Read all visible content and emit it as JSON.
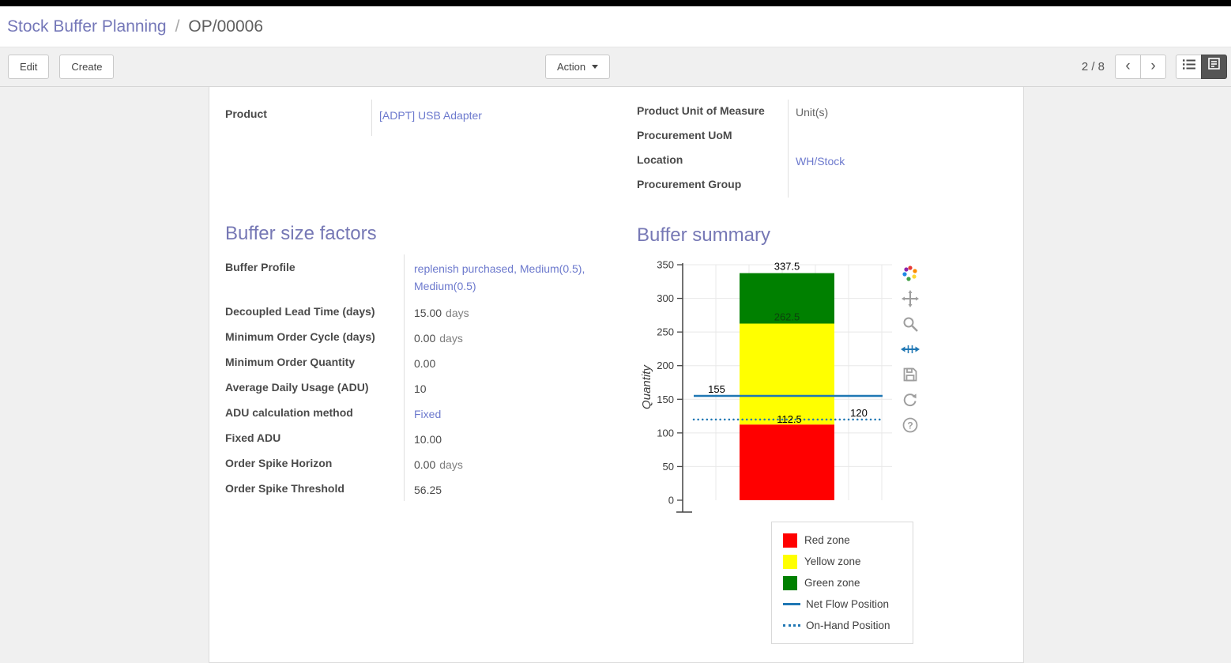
{
  "breadcrumb": {
    "parent": "Stock Buffer Planning",
    "separator": "/",
    "current": "OP/00006"
  },
  "toolbar": {
    "edit_label": "Edit",
    "create_label": "Create",
    "action_label": "Action",
    "pager": "2 / 8"
  },
  "form": {
    "left_fields": [
      {
        "label": "Product",
        "value": "[ADPT] USB Adapter"
      }
    ],
    "right_fields": [
      {
        "label": "Product Unit of Measure",
        "value": "Unit(s)"
      },
      {
        "label": "Procurement UoM",
        "value": ""
      },
      {
        "label": "Location",
        "value": "WH/Stock"
      },
      {
        "label": "Procurement Group",
        "value": ""
      }
    ]
  },
  "buffer_size_factors": {
    "title": "Buffer size factors",
    "rows": [
      {
        "label": "Buffer Profile",
        "value": "replenish purchased, Medium(0.5), Medium(0.5)",
        "unit": ""
      },
      {
        "label": "Decoupled Lead Time (days)",
        "value": "15.00",
        "unit": "days"
      },
      {
        "label": "Minimum Order Cycle (days)",
        "value": "0.00",
        "unit": "days"
      },
      {
        "label": "Minimum Order Quantity",
        "value": "0.00",
        "unit": ""
      },
      {
        "label": "Average Daily Usage (ADU)",
        "value": "10",
        "unit": ""
      },
      {
        "label": "ADU calculation method",
        "value": "Fixed",
        "unit": ""
      },
      {
        "label": "Fixed ADU",
        "value": "10.00",
        "unit": ""
      },
      {
        "label": "Order Spike Horizon",
        "value": "0.00",
        "unit": "days"
      },
      {
        "label": "Order Spike Threshold",
        "value": "56.25",
        "unit": ""
      }
    ]
  },
  "buffer_summary": {
    "title": "Buffer summary"
  },
  "chart_data": {
    "type": "bar",
    "title": "",
    "xlabel": "",
    "ylabel": "Quantity",
    "ylim": [
      0,
      350
    ],
    "yticks": [
      0,
      50,
      100,
      150,
      200,
      250,
      300,
      350
    ],
    "grid": true,
    "legend_position": "bottom-right",
    "zones": [
      {
        "name": "Red zone",
        "from": 0,
        "to": 112.5,
        "color": "#ff0000"
      },
      {
        "name": "Yellow zone",
        "from": 112.5,
        "to": 262.5,
        "color": "#ffff00"
      },
      {
        "name": "Green zone",
        "from": 262.5,
        "to": 337.5,
        "color": "#008000"
      }
    ],
    "lines": [
      {
        "name": "Net Flow Position",
        "value": 155,
        "style": "solid",
        "color": "#1f77b4"
      },
      {
        "name": "On-Hand Position",
        "value": 120,
        "style": "dotted",
        "color": "#1f77b4"
      }
    ],
    "annotations": [
      {
        "slot": "top_of_green",
        "text": "337.5",
        "value": 337.5
      },
      {
        "slot": "top_of_yellow",
        "text": "262.5",
        "value": 262.5
      },
      {
        "slot": "net_flow",
        "text": "155",
        "value": 155
      },
      {
        "slot": "top_of_red",
        "text": "112.5",
        "value": 112.5
      },
      {
        "slot": "on_hand",
        "text": "120",
        "value": 120
      }
    ]
  },
  "icons": {
    "modebar": [
      "plotly-logo",
      "pan",
      "zoom",
      "autoscale",
      "save",
      "reset",
      "help"
    ],
    "view_switcher": [
      "list-view",
      "form-view"
    ],
    "pager": [
      "chevron-left",
      "chevron-right"
    ],
    "action_button": "caret-down"
  },
  "colors": {
    "top_bar": "#000000",
    "accent_heading": "#7678b5",
    "link": "#6c79cd",
    "red_zone": "#ff0000",
    "yellow_zone": "#ffff00",
    "green_zone": "#008000",
    "flow_line": "#1f77b4"
  }
}
